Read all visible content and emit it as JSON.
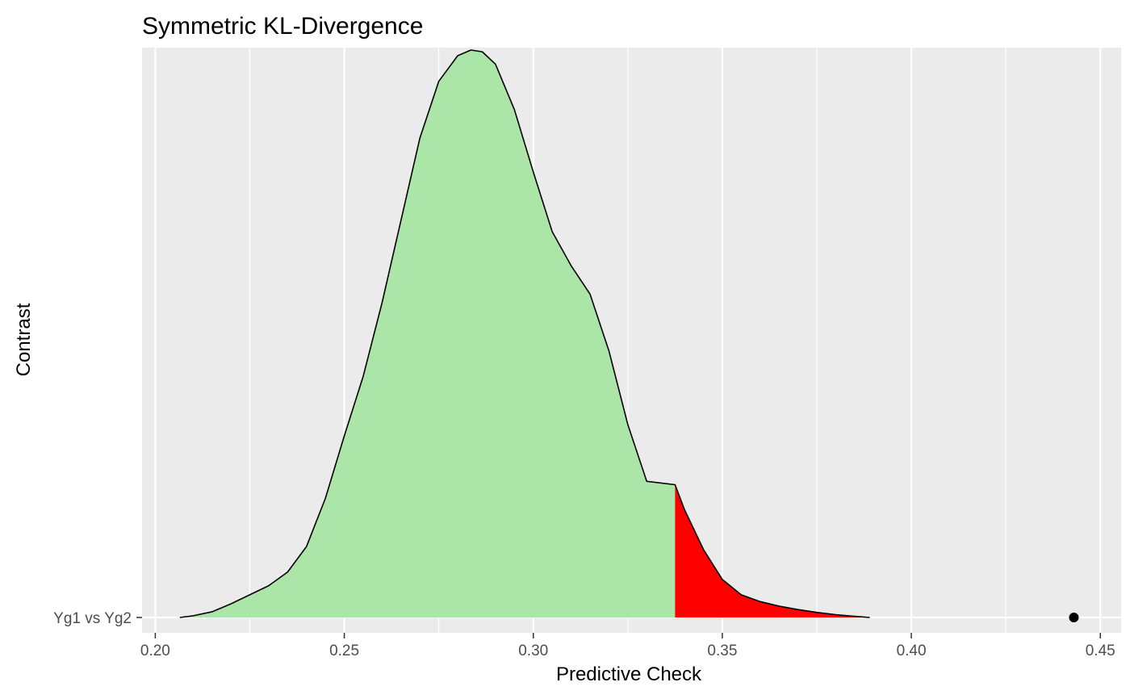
{
  "chart_data": {
    "type": "area",
    "title": "Symmetric KL-Divergence",
    "xlabel": "Predictive Check",
    "ylabel": "Contrast",
    "xlim": [
      0.1965,
      0.4555
    ],
    "x_ticks": [
      0.2,
      0.25,
      0.3,
      0.35,
      0.4,
      0.45
    ],
    "x_tick_labels": [
      "0.20",
      "0.25",
      "0.30",
      "0.35",
      "0.40",
      "0.45"
    ],
    "y_categories": [
      "Yg1 vs Yg2"
    ],
    "grid": true,
    "panel_background": "#ebebeb",
    "grid_color": "#ffffff",
    "density": {
      "category": "Yg1 vs Yg2",
      "x": [
        0.2065,
        0.21,
        0.215,
        0.22,
        0.225,
        0.23,
        0.235,
        0.24,
        0.245,
        0.25,
        0.255,
        0.26,
        0.265,
        0.27,
        0.275,
        0.28,
        0.2835,
        0.2865,
        0.29,
        0.295,
        0.3,
        0.305,
        0.31,
        0.315,
        0.32,
        0.325,
        0.33,
        0.3375,
        0.34,
        0.345,
        0.35,
        0.355,
        0.36,
        0.365,
        0.37,
        0.375,
        0.38,
        0.385,
        0.389
      ],
      "y": [
        0.0,
        0.003,
        0.01,
        0.024,
        0.04,
        0.056,
        0.08,
        0.125,
        0.21,
        0.32,
        0.425,
        0.555,
        0.7,
        0.845,
        0.945,
        0.99,
        1.0,
        0.997,
        0.975,
        0.895,
        0.785,
        0.68,
        0.62,
        0.57,
        0.47,
        0.34,
        0.24,
        0.234,
        0.19,
        0.12,
        0.067,
        0.04,
        0.028,
        0.02,
        0.014,
        0.009,
        0.005,
        0.002,
        0.0
      ],
      "fill": "#abe5a8",
      "tail_fill": "#ff0000",
      "tail_start": 0.3375,
      "outline": "#000000"
    },
    "observed_point": {
      "category": "Yg1 vs Yg2",
      "x": 0.443,
      "color": "#000000"
    }
  }
}
